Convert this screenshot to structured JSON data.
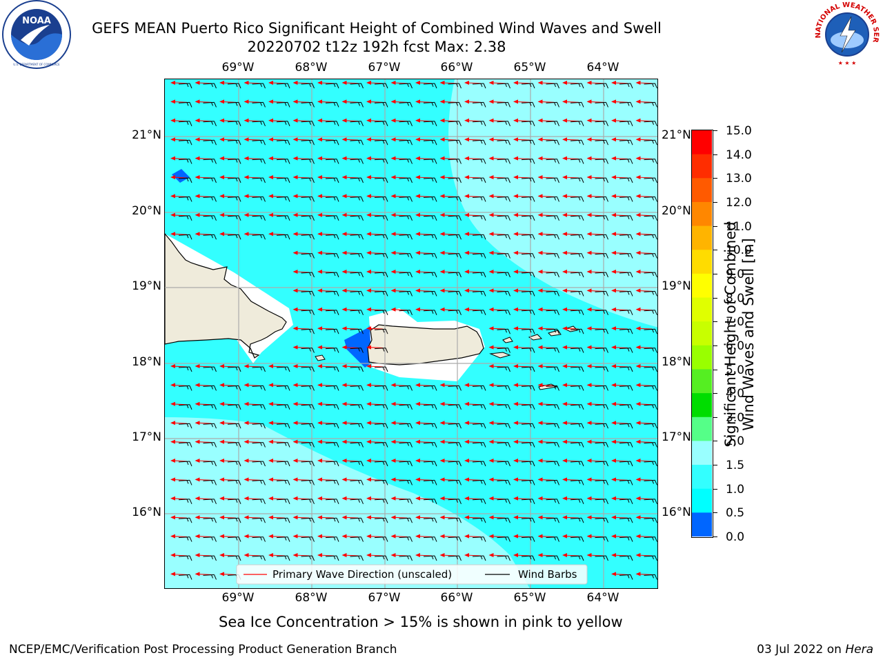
{
  "title": {
    "line1": "GEFS MEAN Puerto Rico Significant Height of Combined Wind Waves and Swell",
    "line2": "20220702 t12z 192h fcst   Max: 2.38"
  },
  "logos": {
    "left_icon": "noaa-logo-icon",
    "left_text": "NOAA",
    "left_ring_text": "NATIONAL OCEANIC AND ATMOSPHERIC ADMINISTRATION · U.S. DEPARTMENT OF COMMERCE",
    "right_icon": "nws-logo-icon",
    "right_ring_text": "NATIONAL WEATHER SERVICE"
  },
  "map": {
    "lon_labels": [
      "69°W",
      "68°W",
      "67°W",
      "66°W",
      "65°W",
      "64°W"
    ],
    "lat_labels": [
      "21°N",
      "20°N",
      "19°N",
      "18°N",
      "17°N",
      "16°N"
    ],
    "legend": {
      "wave_direction": "Primary Wave Direction (unscaled)",
      "wind_barbs": "Wind Barbs"
    },
    "colors": {
      "ocean_main": "#33ffff",
      "ocean_light": "#99ffff",
      "ocean_dark": "#0066ff",
      "land": "#efebdb",
      "arrow": "#ff0000",
      "grid": "#aaaaaa"
    }
  },
  "colorbar": {
    "title_line1": "Significant Height of Combined",
    "title_line2": "Wind Waves and Swell [m]",
    "ticks": [
      "15.0",
      "14.0",
      "13.0",
      "12.0",
      "11.0",
      "10.0",
      "9.0",
      "8.0",
      "7.0",
      "6.0",
      "5.0",
      "4.0",
      "3.0",
      "2.0",
      "1.5",
      "1.0",
      "0.5",
      "0.0"
    ],
    "colors_top_to_bottom": [
      "#ff0000",
      "#ff2d00",
      "#ff5a00",
      "#ff8700",
      "#ffb400",
      "#ffdc00",
      "#ffff00",
      "#e0ff00",
      "#c8ff00",
      "#99ff00",
      "#55ee22",
      "#00dd00",
      "#55ff88",
      "#99ffff",
      "#33ffff",
      "#00ffff",
      "#0066ff",
      "#0000ff"
    ]
  },
  "subtitle": "Sea Ice Concentration > 15% is shown in pink to yellow",
  "footer": {
    "left": "NCEP/EMC/Verification Post Processing Product Generation Branch",
    "right_prefix": "03 Jul 2022 on ",
    "right_host": "Hera"
  }
}
